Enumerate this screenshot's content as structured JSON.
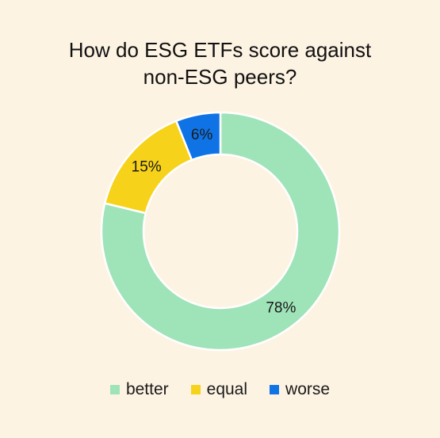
{
  "chart_data": {
    "type": "pie",
    "title": "How do ESG ETFs score against non-ESG peers?",
    "title_lines": [
      "How do ESG ETFs score against",
      "non-ESG peers?"
    ],
    "donut": true,
    "legend_position": "bottom",
    "series": [
      {
        "name": "better",
        "value": 78,
        "label": "78%",
        "color": "#9fe3b8"
      },
      {
        "name": "equal",
        "value": 15,
        "label": "15%",
        "color": "#f7d21a"
      },
      {
        "name": "worse",
        "value": 6,
        "label": "6%",
        "color": "#0f73e6"
      }
    ]
  }
}
